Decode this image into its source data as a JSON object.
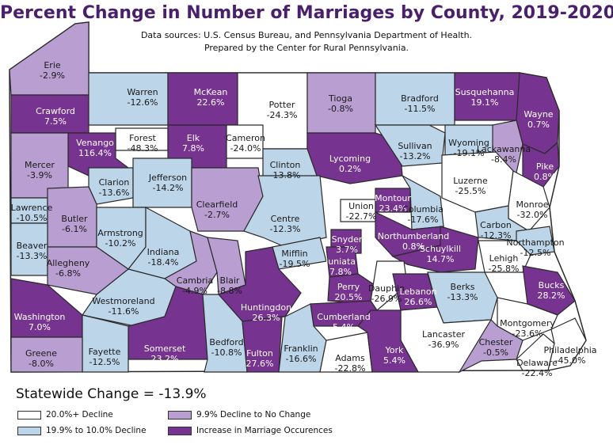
{
  "title": "Percent Change in Number of Marriages by County, 2019-2020",
  "subtitle1": "Data sources: U.S. Census Bureau, and Pennsylvania Department of Health.",
  "subtitle2": "Prepared by the Center for Rural Pennsylvania.",
  "statewide": "Statewide Change = -13.9%",
  "colors": {
    "decline20": "#ffffff",
    "decline10": "#bcd5e9",
    "small": "#b99fd1",
    "increase": "#76338f",
    "border": "#2a2a2a"
  },
  "legend": [
    {
      "key": "decline20",
      "label": "20.0%+ Decline"
    },
    {
      "key": "small",
      "label": "9.9% Decline to No Change"
    },
    {
      "key": "decline10",
      "label": "19.9% to 10.0% Decline"
    },
    {
      "key": "increase",
      "label": "Increase in Marriage Occurences"
    }
  ],
  "counties": [
    {
      "name": "Erie",
      "value": "-2.9%",
      "cat": "small"
    },
    {
      "name": "Crawford",
      "value": "7.5%",
      "cat": "increase"
    },
    {
      "name": "Warren",
      "value": "-12.6%",
      "cat": "decline10"
    },
    {
      "name": "McKean",
      "value": "22.6%",
      "cat": "increase"
    },
    {
      "name": "Potter",
      "value": "-24.3%",
      "cat": "decline20"
    },
    {
      "name": "Tioga",
      "value": "-0.8%",
      "cat": "small"
    },
    {
      "name": "Bradford",
      "value": "-11.5%",
      "cat": "decline10"
    },
    {
      "name": "Susquehanna",
      "value": "19.1%",
      "cat": "increase"
    },
    {
      "name": "Wayne",
      "value": "0.7%",
      "cat": "increase"
    },
    {
      "name": "Forest",
      "value": "-48.3%",
      "cat": "decline20"
    },
    {
      "name": "Elk",
      "value": "7.8%",
      "cat": "increase"
    },
    {
      "name": "Cameron",
      "value": "-24.0%",
      "cat": "decline20"
    },
    {
      "name": "Venango",
      "value": "116.4%",
      "cat": "increase"
    },
    {
      "name": "Mercer",
      "value": "-3.9%",
      "cat": "small"
    },
    {
      "name": "Clarion",
      "value": "-13.6%",
      "cat": "decline10"
    },
    {
      "name": "Jefferson",
      "value": "-14.2%",
      "cat": "decline10"
    },
    {
      "name": "Clinton",
      "value": "-13.8%",
      "cat": "decline10"
    },
    {
      "name": "Lycoming",
      "value": "0.2%",
      "cat": "increase"
    },
    {
      "name": "Sullivan",
      "value": "-13.2%",
      "cat": "decline10"
    },
    {
      "name": "Wyoming",
      "value": "-19.1%",
      "cat": "decline10"
    },
    {
      "name": "Lackawanna",
      "value": "-8.4%",
      "cat": "small"
    },
    {
      "name": "Pike",
      "value": "0.8%",
      "cat": "increase"
    },
    {
      "name": "Luzerne",
      "value": "-25.5%",
      "cat": "decline20"
    },
    {
      "name": "Lawrence",
      "value": "-10.5%",
      "cat": "decline10"
    },
    {
      "name": "Butler",
      "value": "-6.1%",
      "cat": "small"
    },
    {
      "name": "Clearfield",
      "value": "-2.7%",
      "cat": "small"
    },
    {
      "name": "Centre",
      "value": "-12.3%",
      "cat": "decline10"
    },
    {
      "name": "Union",
      "value": "-22.7%",
      "cat": "decline20"
    },
    {
      "name": "Montour",
      "value": "23.4%",
      "cat": "increase"
    },
    {
      "name": "Columbia",
      "value": "-17.6%",
      "cat": "decline10"
    },
    {
      "name": "Monroe",
      "value": "-32.0%",
      "cat": "decline20"
    },
    {
      "name": "Carbon",
      "value": "-12.3%",
      "cat": "decline10"
    },
    {
      "name": "Armstrong",
      "value": "-10.2%",
      "cat": "decline10"
    },
    {
      "name": "Beaver",
      "value": "-13.3%",
      "cat": "decline10"
    },
    {
      "name": "Indiana",
      "value": "-18.4%",
      "cat": "decline10"
    },
    {
      "name": "Snyder",
      "value": "3.7%",
      "cat": "increase"
    },
    {
      "name": "Northumberland",
      "value": "0.8%",
      "cat": "increase"
    },
    {
      "name": "Schuylkill",
      "value": "14.7%",
      "cat": "increase"
    },
    {
      "name": "Northampton",
      "value": "-12.5%",
      "cat": "decline10"
    },
    {
      "name": "Mifflin",
      "value": "-19.5%",
      "cat": "decline10"
    },
    {
      "name": "Juniata",
      "value": "7.8%",
      "cat": "increase"
    },
    {
      "name": "Lehigh",
      "value": "-25.8%",
      "cat": "decline20"
    },
    {
      "name": "Allegheny",
      "value": "-6.8%",
      "cat": "small"
    },
    {
      "name": "Cambria",
      "value": "-4.9%",
      "cat": "small"
    },
    {
      "name": "Blair",
      "value": "-8.8%",
      "cat": "small"
    },
    {
      "name": "Perry",
      "value": "20.5%",
      "cat": "increase"
    },
    {
      "name": "Dauphin",
      "value": "-26.9%",
      "cat": "decline20"
    },
    {
      "name": "Lebanon",
      "value": "26.6%",
      "cat": "increase"
    },
    {
      "name": "Berks",
      "value": "-13.3%",
      "cat": "decline10"
    },
    {
      "name": "Bucks",
      "value": "28.2%",
      "cat": "increase"
    },
    {
      "name": "Westmoreland",
      "value": "-11.6%",
      "cat": "decline10"
    },
    {
      "name": "Huntingdon",
      "value": "26.3%",
      "cat": "increase"
    },
    {
      "name": "Washington",
      "value": "7.0%",
      "cat": "increase"
    },
    {
      "name": "Cumberland",
      "value": "5.4%",
      "cat": "increase"
    },
    {
      "name": "Montgomery",
      "value": "-23.6%",
      "cat": "decline20"
    },
    {
      "name": "Lancaster",
      "value": "-36.9%",
      "cat": "decline20"
    },
    {
      "name": "Chester",
      "value": "-0.5%",
      "cat": "small"
    },
    {
      "name": "Somerset",
      "value": "23.2%",
      "cat": "increase"
    },
    {
      "name": "Bedford",
      "value": "-10.8%",
      "cat": "decline10"
    },
    {
      "name": "Fulton",
      "value": "27.6%",
      "cat": "increase"
    },
    {
      "name": "Franklin",
      "value": "-16.6%",
      "cat": "decline10"
    },
    {
      "name": "Adams",
      "value": "-22.8%",
      "cat": "decline20"
    },
    {
      "name": "York",
      "value": "5.4%",
      "cat": "increase"
    },
    {
      "name": "Delaware",
      "value": "-22.4%",
      "cat": "decline20"
    },
    {
      "name": "Philadelphia",
      "value": "-45.0%",
      "cat": "decline20"
    },
    {
      "name": "Fayette",
      "value": "-12.5%",
      "cat": "decline10"
    },
    {
      "name": "Greene",
      "value": "-8.0%",
      "cat": "small"
    }
  ]
}
